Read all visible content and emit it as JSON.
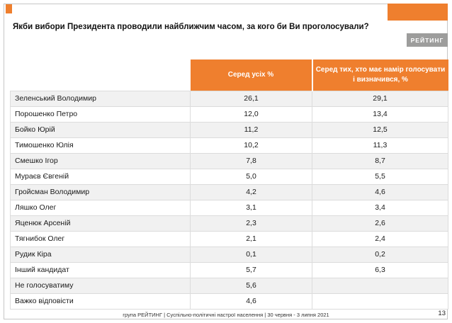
{
  "page": {
    "title": "Якби вибори Президента проводили найближчим часом, за кого би Ви проголосували?",
    "logo_text": "РЕЙТИНГ",
    "footer": "група РЕЙТИНГ | Суспільно-політичні настрої населення | 30 червня - 3 липня 2021",
    "page_number": "13"
  },
  "colors": {
    "accent_orange": "#EF7F2E",
    "logo_gray": "#9D9D9C",
    "row_alt": "#F1F1F1"
  },
  "chart_data": {
    "type": "table",
    "title": "Якби вибори Президента проводили найближчим часом, за кого би Ви проголосували?",
    "columns": [
      "",
      "Серед усіх %",
      "Серед тих, хто має намір голосувати і визначився, %"
    ],
    "rows": [
      {
        "name": "Зеленський Володимир",
        "all": "26,1",
        "decided": "29,1"
      },
      {
        "name": "Порошенко Петро",
        "all": "12,0",
        "decided": "13,4"
      },
      {
        "name": "Бойко Юрій",
        "all": "11,2",
        "decided": "12,5"
      },
      {
        "name": "Тимошенко Юлія",
        "all": "10,2",
        "decided": "11,3"
      },
      {
        "name": "Смешко Ігор",
        "all": "7,8",
        "decided": "8,7"
      },
      {
        "name": "Мураєв Євгеній",
        "all": "5,0",
        "decided": "5,5"
      },
      {
        "name": "Гройсман Володимир",
        "all": "4,2",
        "decided": "4,6"
      },
      {
        "name": "Ляшко Олег",
        "all": "3,1",
        "decided": "3,4"
      },
      {
        "name": "Яценюк Арсеній",
        "all": "2,3",
        "decided": "2,6"
      },
      {
        "name": "Тягнибок Олег",
        "all": "2,1",
        "decided": "2,4"
      },
      {
        "name": "Рудик Кіра",
        "all": "0,1",
        "decided": "0,2"
      },
      {
        "name": "Інший кандидат",
        "all": "5,7",
        "decided": "6,3"
      },
      {
        "name": "Не голосуватиму",
        "all": "5,6",
        "decided": ""
      },
      {
        "name": "Важко відповісти",
        "all": "4,6",
        "decided": ""
      }
    ]
  }
}
